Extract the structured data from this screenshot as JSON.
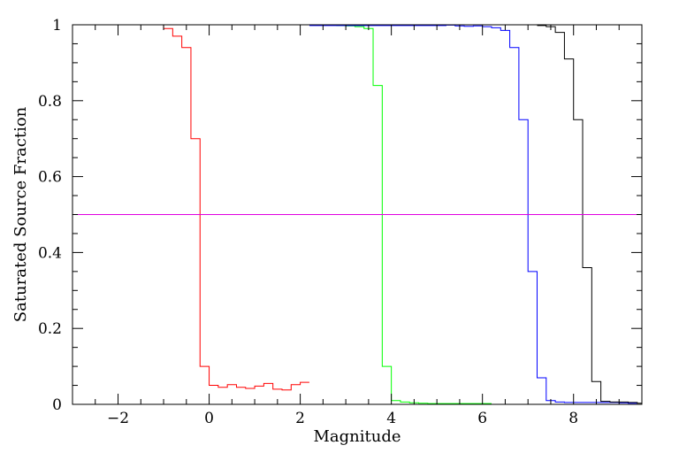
{
  "chart_data": {
    "type": "line",
    "xlabel": "Magnitude",
    "ylabel": "Saturated Source Fraction",
    "xlim": [
      -3,
      9.5
    ],
    "ylim": [
      0,
      1
    ],
    "x_ticks": [
      -2,
      0,
      2,
      4,
      6,
      8
    ],
    "x_tick_labels": [
      "−2",
      "0",
      "2",
      "4",
      "6",
      "8"
    ],
    "y_ticks": [
      0,
      0.2,
      0.4,
      0.6,
      0.8,
      1
    ],
    "y_tick_labels": [
      "0",
      "0.2",
      "0.4",
      "0.6",
      "0.8",
      "1"
    ],
    "grid": false,
    "hline": {
      "y": 0.5,
      "color": "#e000e0"
    },
    "series": [
      {
        "color": "#ff0000",
        "x": [
          -3,
          -1.2,
          -1.0,
          -0.8,
          -0.6,
          -0.4,
          -0.2,
          0,
          0.2,
          0.4,
          0.6,
          0.8,
          1.0,
          1.2,
          1.4,
          1.6,
          1.8,
          2.0
        ],
        "y": [
          1,
          1,
          0.99,
          0.97,
          0.94,
          0.7,
          0.1,
          0.05,
          0.045,
          0.052,
          0.045,
          0.042,
          0.048,
          0.055,
          0.04,
          0.038,
          0.052,
          0.058
        ]
      },
      {
        "color": "#00ff00",
        "x": [
          -1.2,
          2.8,
          3.0,
          3.2,
          3.4,
          3.6,
          3.8,
          4.0,
          4.2,
          4.4,
          4.6,
          4.8,
          5.0,
          5.2,
          5.4,
          5.6,
          5.8,
          6.0
        ],
        "y": [
          1,
          0.998,
          0.997,
          0.995,
          0.99,
          0.84,
          0.1,
          0.01,
          0.006,
          0.004,
          0.003,
          0.002,
          0.002,
          0.002,
          0.002,
          0.002,
          0.002,
          0.002
        ]
      },
      {
        "color": "#0000ff",
        "x": [
          2.2,
          5.2,
          5.4,
          5.6,
          5.8,
          6.0,
          6.2,
          6.4,
          6.6,
          6.8,
          7.0,
          7.2,
          7.4,
          7.6,
          7.8,
          8.0,
          8.4,
          9.0,
          9.2
        ],
        "y": [
          0.998,
          0.999,
          0.997,
          0.996,
          0.997,
          0.995,
          0.992,
          0.985,
          0.94,
          0.75,
          0.35,
          0.07,
          0.01,
          0.006,
          0.005,
          0.005,
          0.005,
          0.004,
          0.003
        ]
      },
      {
        "color": "#000000",
        "x": [
          7.2,
          7.4,
          7.6,
          7.8,
          8.0,
          8.2,
          8.4,
          8.6,
          8.8,
          9.0,
          9.2,
          9.4
        ],
        "y": [
          0.998,
          0.995,
          0.98,
          0.91,
          0.75,
          0.36,
          0.06,
          0.008,
          0.006,
          0.006,
          0.005,
          0.003
        ]
      }
    ]
  }
}
